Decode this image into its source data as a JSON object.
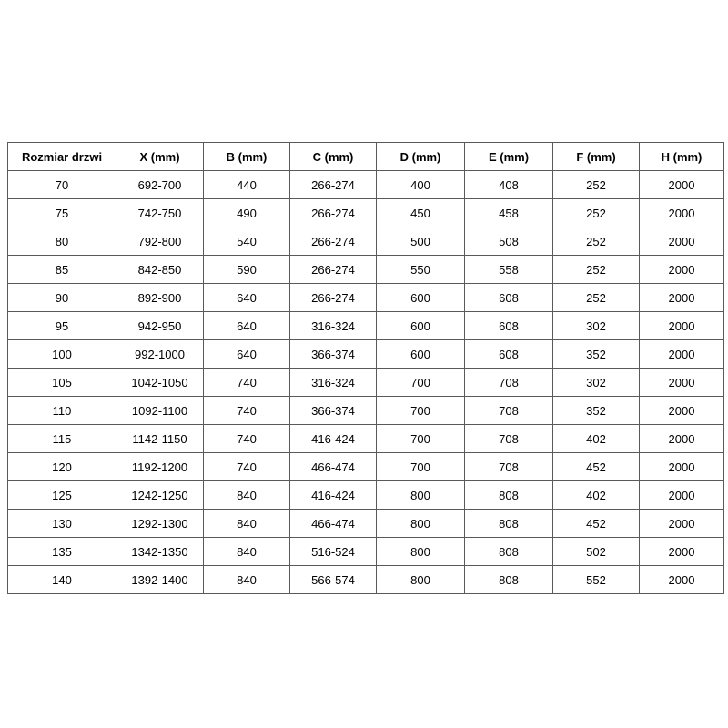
{
  "table": {
    "headers": [
      "Rozmiar drzwi",
      "X (mm)",
      "B (mm)",
      "C (mm)",
      "D (mm)",
      "E (mm)",
      "F (mm)",
      "H (mm)"
    ],
    "rows": [
      [
        "70",
        "692-700",
        "440",
        "266-274",
        "400",
        "408",
        "252",
        "2000"
      ],
      [
        "75",
        "742-750",
        "490",
        "266-274",
        "450",
        "458",
        "252",
        "2000"
      ],
      [
        "80",
        "792-800",
        "540",
        "266-274",
        "500",
        "508",
        "252",
        "2000"
      ],
      [
        "85",
        "842-850",
        "590",
        "266-274",
        "550",
        "558",
        "252",
        "2000"
      ],
      [
        "90",
        "892-900",
        "640",
        "266-274",
        "600",
        "608",
        "252",
        "2000"
      ],
      [
        "95",
        "942-950",
        "640",
        "316-324",
        "600",
        "608",
        "302",
        "2000"
      ],
      [
        "100",
        "992-1000",
        "640",
        "366-374",
        "600",
        "608",
        "352",
        "2000"
      ],
      [
        "105",
        "1042-1050",
        "740",
        "316-324",
        "700",
        "708",
        "302",
        "2000"
      ],
      [
        "110",
        "1092-1100",
        "740",
        "366-374",
        "700",
        "708",
        "352",
        "2000"
      ],
      [
        "115",
        "1142-1150",
        "740",
        "416-424",
        "700",
        "708",
        "402",
        "2000"
      ],
      [
        "120",
        "1192-1200",
        "740",
        "466-474",
        "700",
        "708",
        "452",
        "2000"
      ],
      [
        "125",
        "1242-1250",
        "840",
        "416-424",
        "800",
        "808",
        "402",
        "2000"
      ],
      [
        "130",
        "1292-1300",
        "840",
        "466-474",
        "800",
        "808",
        "452",
        "2000"
      ],
      [
        "135",
        "1342-1350",
        "840",
        "516-524",
        "800",
        "808",
        "502",
        "2000"
      ],
      [
        "140",
        "1392-1400",
        "840",
        "566-574",
        "800",
        "808",
        "552",
        "2000"
      ]
    ]
  },
  "colors": {
    "background": "#ffffff",
    "border": "#595959",
    "text": "#000000"
  }
}
